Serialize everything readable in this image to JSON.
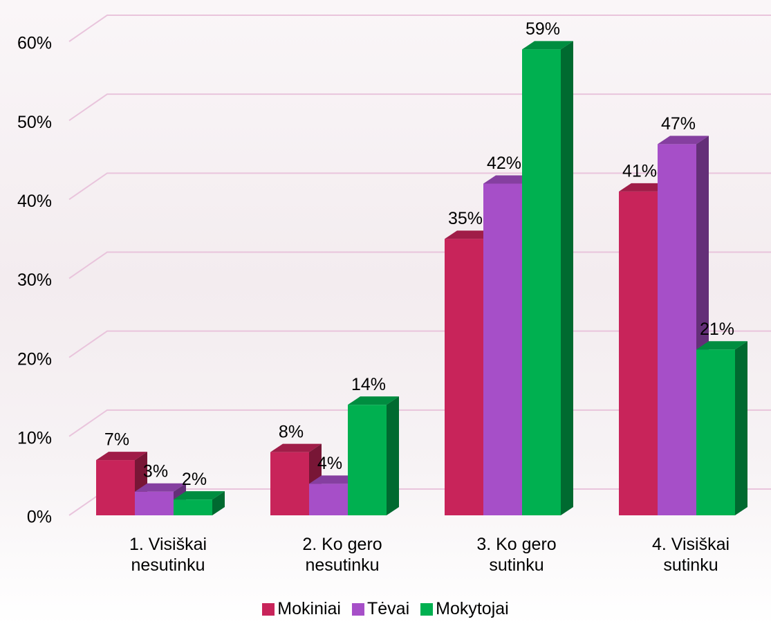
{
  "chart_data": {
    "type": "bar3d",
    "categories": [
      "1. Visiškai nesutinku",
      "2. Ko gero nesutinku",
      "3. Ko gero sutinku",
      "4. Visiškai sutinku"
    ],
    "series": [
      {
        "name": "Mokiniai",
        "color": "#c8245a",
        "values": [
          7,
          8,
          35,
          41
        ],
        "value_labels": [
          "7%",
          "8%",
          "35%",
          "41%"
        ]
      },
      {
        "name": "Tėvai",
        "color": "#a64fc8",
        "values": [
          3,
          4,
          42,
          47
        ],
        "value_labels": [
          "3%",
          "4%",
          "42%",
          "47%"
        ]
      },
      {
        "name": "Mokytojai",
        "color": "#00b050",
        "values": [
          2,
          14,
          59,
          21
        ],
        "value_labels": [
          "2%",
          "14%",
          "59%",
          "21%"
        ]
      }
    ],
    "ylim": [
      0,
      60
    ],
    "yticks": [
      {
        "value": 0,
        "label": "0%"
      },
      {
        "value": 10,
        "label": "10%"
      },
      {
        "value": 20,
        "label": "20%"
      },
      {
        "value": 30,
        "label": "30%"
      },
      {
        "value": 40,
        "label": "40%"
      },
      {
        "value": 50,
        "label": "50%"
      },
      {
        "value": 60,
        "label": "60%"
      }
    ],
    "grid": true
  }
}
